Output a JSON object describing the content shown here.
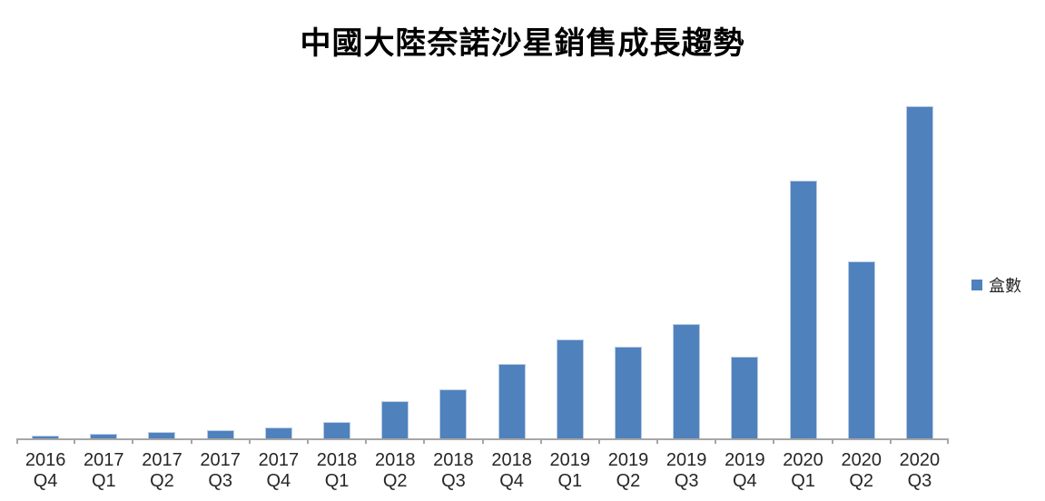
{
  "title": "中國大陸奈諾沙星銷售成長趨勢",
  "legend": {
    "label": "盒數"
  },
  "colors": {
    "bar_fill": "#4f81bd",
    "bar_border": "#b8cce4",
    "axis_line": "#a6a6a6",
    "label_text": "#262626",
    "title_text": "#000000",
    "background": "#ffffff"
  },
  "chart_data": {
    "type": "bar",
    "title": "中國大陸奈諾沙星銷售成長趨勢",
    "categories": [
      "2016 Q4",
      "2017 Q1",
      "2017 Q2",
      "2017 Q3",
      "2017 Q4",
      "2018 Q1",
      "2018 Q2",
      "2018 Q3",
      "2018 Q4",
      "2019 Q1",
      "2019 Q2",
      "2019 Q3",
      "2019 Q4",
      "2020 Q1",
      "2020 Q2",
      "2020 Q3"
    ],
    "series": [
      {
        "name": "盒數",
        "values": [
          0.8,
          1.4,
          1.9,
          2.5,
          3.3,
          4.9,
          11.2,
          14.8,
          22.4,
          29.8,
          27.6,
          34.4,
          24.6,
          77.6,
          53.3,
          100
        ]
      }
    ],
    "xlabel": "",
    "ylabel": "",
    "ylim": [
      0,
      100
    ],
    "grid": false,
    "y_axis_labels_visible": false,
    "legend_position": "right",
    "note": "Source chart shows no numeric y-axis; values are relative bar heights with the tallest bar (2020 Q3) scaled to 100."
  }
}
